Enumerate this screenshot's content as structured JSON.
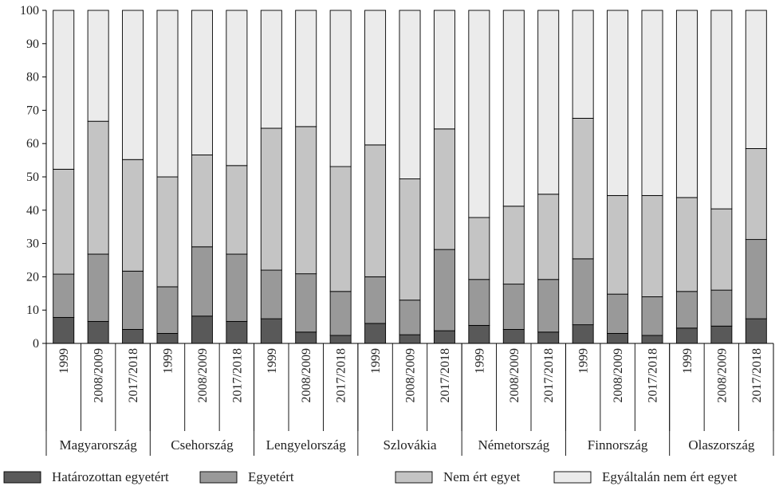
{
  "chart_data": {
    "type": "bar",
    "stacked": true,
    "ylim": [
      0,
      100
    ],
    "yticks": [
      0,
      10,
      20,
      30,
      40,
      50,
      60,
      70,
      80,
      90,
      100
    ],
    "periods": [
      "1999",
      "2008/2009",
      "2017/2018"
    ],
    "groups": [
      "Magyarország",
      "Csehország",
      "Lengyelország",
      "Szlovákia",
      "Németország",
      "Finnország",
      "Olaszország"
    ],
    "series": [
      {
        "name": "Határozottan egyetért",
        "color": "#595959",
        "values": [
          7.8,
          6.6,
          4.2,
          3.0,
          8.2,
          6.6,
          7.4,
          3.4,
          2.4,
          6.0,
          2.6,
          3.8,
          5.4,
          4.2,
          3.4,
          5.6,
          3.0,
          2.4,
          4.6,
          5.2,
          7.4
        ]
      },
      {
        "name": "Egyetért",
        "color": "#999999",
        "values": [
          13.0,
          20.2,
          17.5,
          14.0,
          20.8,
          20.2,
          14.6,
          17.5,
          13.2,
          14.0,
          10.4,
          24.4,
          13.8,
          13.6,
          15.8,
          19.8,
          11.8,
          11.6,
          11.0,
          10.8,
          23.8
        ]
      },
      {
        "name": "Nem ért egyet",
        "color": "#c4c4c4",
        "values": [
          31.5,
          39.9,
          33.5,
          33.0,
          27.6,
          26.6,
          42.6,
          44.2,
          37.5,
          39.6,
          36.4,
          36.2,
          18.6,
          23.4,
          25.6,
          42.2,
          29.6,
          30.4,
          28.2,
          24.4,
          27.3
        ]
      },
      {
        "name": "Egyáltalán nem ért egyet",
        "color": "#ebebeb",
        "values": [
          47.7,
          33.3,
          44.8,
          50.0,
          43.4,
          46.6,
          35.4,
          34.9,
          46.9,
          40.4,
          50.6,
          35.6,
          62.2,
          58.8,
          55.2,
          32.4,
          55.6,
          55.6,
          56.2,
          59.6,
          41.5
        ]
      }
    ]
  }
}
